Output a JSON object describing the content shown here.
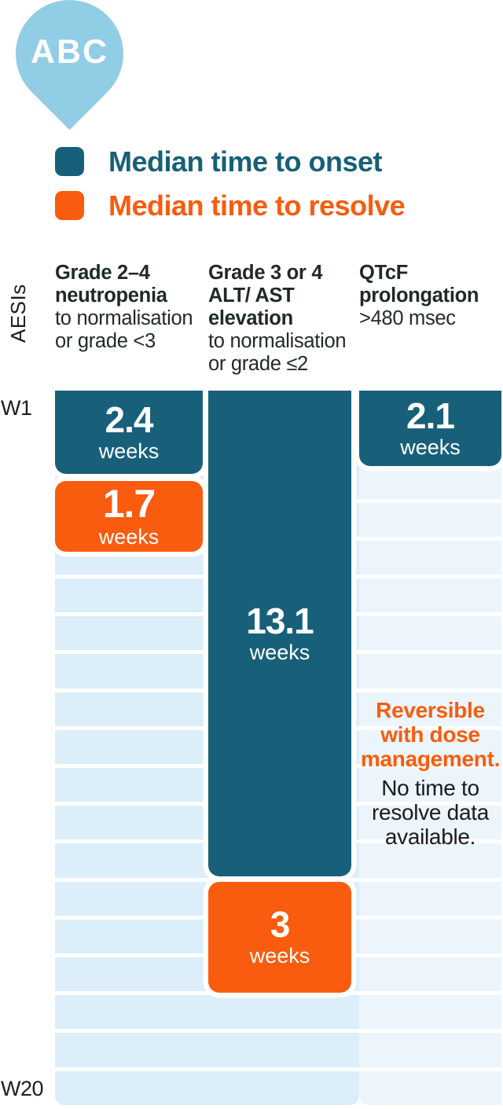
{
  "pin": {
    "label": "ABC"
  },
  "legend": {
    "onset": {
      "label": "Median time to onset",
      "color": "#18607A"
    },
    "resolve": {
      "label": "Median time to resolve",
      "color": "#F95C0E"
    }
  },
  "axis": {
    "label": "AESIs",
    "week_first": "W1",
    "week_last": "W20"
  },
  "columns": [
    {
      "heading_bold": "Grade 2–4 neutropenia",
      "heading_normal": "to normalisation or grade <3",
      "onset": {
        "value": "2.4",
        "unit": "weeks"
      },
      "resolve": {
        "value": "1.7",
        "unit": "weeks"
      }
    },
    {
      "heading_bold": "Grade 3 or 4 ALT/ AST elevation",
      "heading_normal": "to normalisation or grade ≤2",
      "onset": {
        "value": "13.1",
        "unit": "weeks"
      },
      "resolve": {
        "value": "3",
        "unit": "weeks"
      }
    },
    {
      "heading_bold": "QTcF prolongation",
      "heading_normal": ">480 msec",
      "onset": {
        "value": "2.1",
        "unit": "weeks"
      },
      "note_highlight": "Reversible with dose management.",
      "note": "No time to resolve data available."
    }
  ],
  "chart_data": {
    "type": "bar",
    "orientation": "vertical-timeline",
    "unit": "weeks",
    "title": "",
    "y_axis": {
      "label": "AESIs",
      "start": "W1",
      "end": "W20",
      "gridlines": 19,
      "grid": true
    },
    "categories": [
      "Grade 2–4 neutropenia to normalisation or grade <3",
      "Grade 3 or 4 ALT/ AST elevation to normalisation or grade ≤2",
      "QTcF prolongation >480 msec"
    ],
    "series": [
      {
        "name": "Median time to onset",
        "color": "#18607A",
        "values": [
          2.4,
          13.1,
          2.1
        ]
      },
      {
        "name": "Median time to resolve",
        "color": "#F95C0E",
        "values": [
          1.7,
          3,
          null
        ]
      }
    ],
    "annotations": [
      {
        "category": "QTcF prolongation >480 msec",
        "text": "Reversible with dose management. No time to resolve data available."
      }
    ],
    "legend_position": "top-left",
    "colors": {
      "stripe_main": "#DBEEF9",
      "stripe_qtcf": "#ECF5FB",
      "pin_blue": "#92CDE6",
      "heading_text": "#1E2A22"
    }
  }
}
